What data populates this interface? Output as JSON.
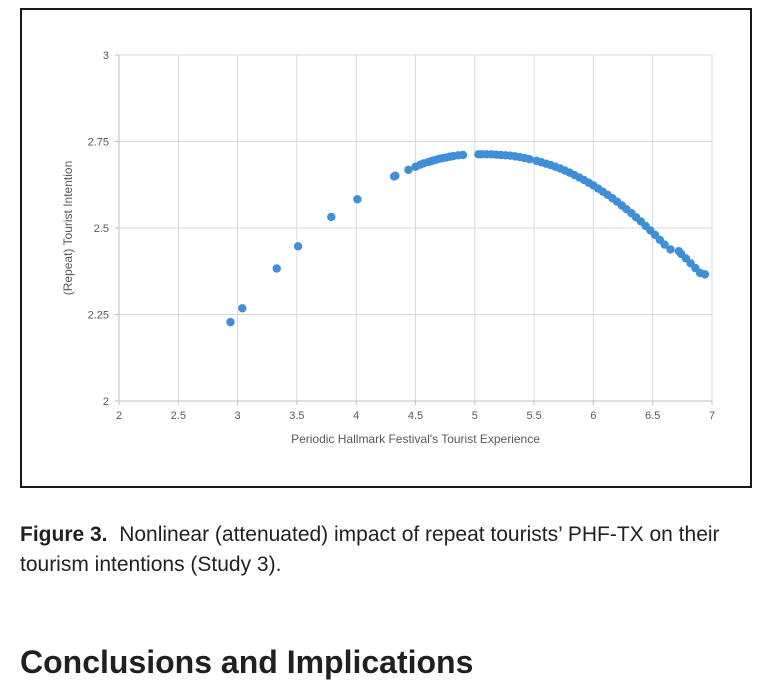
{
  "chart_data": {
    "type": "scatter",
    "xlabel": "Periodic Hallmark Festival's Tourist Experience",
    "ylabel": "(Repeat) Tourist Intention",
    "xlim": [
      2,
      7
    ],
    "ylim": [
      2,
      3
    ],
    "xticks": [
      "2",
      "2.5",
      "3",
      "3.5",
      "4",
      "4.5",
      "5",
      "5.5",
      "6",
      "6.5",
      "7"
    ],
    "yticks": [
      "2",
      "2.25",
      "2.5",
      "2.75",
      "3"
    ],
    "grid": true,
    "marker_color": "#3f8fd6",
    "series": [
      {
        "points": [
          [
            2.94,
            2.228
          ],
          [
            3.04,
            2.268
          ],
          [
            3.33,
            2.383
          ],
          [
            3.51,
            2.447
          ],
          [
            3.79,
            2.532
          ],
          [
            4.01,
            2.583
          ],
          [
            4.32,
            2.649
          ],
          [
            4.33,
            2.651
          ],
          [
            4.44,
            2.668
          ],
          [
            4.5,
            2.677
          ],
          [
            4.54,
            2.683
          ],
          [
            4.57,
            2.687
          ],
          [
            4.61,
            2.691
          ],
          [
            4.64,
            2.694
          ],
          [
            4.67,
            2.697
          ],
          [
            4.7,
            2.7
          ],
          [
            4.73,
            2.702
          ],
          [
            4.76,
            2.704
          ],
          [
            4.79,
            2.706
          ],
          [
            4.82,
            2.708
          ],
          [
            4.86,
            2.71
          ],
          [
            4.9,
            2.711
          ],
          [
            5.03,
            2.713
          ],
          [
            5.06,
            2.713
          ],
          [
            5.1,
            2.713
          ],
          [
            5.14,
            2.713
          ],
          [
            5.18,
            2.712
          ],
          [
            5.22,
            2.711
          ],
          [
            5.26,
            2.71
          ],
          [
            5.3,
            2.709
          ],
          [
            5.34,
            2.707
          ],
          [
            5.38,
            2.705
          ],
          [
            5.42,
            2.702
          ],
          [
            5.46,
            2.699
          ],
          [
            5.52,
            2.694
          ],
          [
            5.56,
            2.69
          ],
          [
            5.6,
            2.686
          ],
          [
            5.64,
            2.682
          ],
          [
            5.68,
            2.677
          ],
          [
            5.72,
            2.672
          ],
          [
            5.76,
            2.666
          ],
          [
            5.8,
            2.66
          ],
          [
            5.84,
            2.653
          ],
          [
            5.88,
            2.646
          ],
          [
            5.92,
            2.639
          ],
          [
            5.96,
            2.631
          ],
          [
            6.0,
            2.623
          ],
          [
            6.04,
            2.614
          ],
          [
            6.08,
            2.605
          ],
          [
            6.12,
            2.596
          ],
          [
            6.16,
            2.586
          ],
          [
            6.2,
            2.576
          ],
          [
            6.24,
            2.565
          ],
          [
            6.28,
            2.554
          ],
          [
            6.32,
            2.543
          ],
          [
            6.36,
            2.531
          ],
          [
            6.4,
            2.519
          ],
          [
            6.44,
            2.506
          ],
          [
            6.48,
            2.493
          ],
          [
            6.52,
            2.48
          ],
          [
            6.56,
            2.466
          ],
          [
            6.6,
            2.452
          ],
          [
            6.65,
            2.438
          ],
          [
            6.72,
            2.433
          ],
          [
            6.74,
            2.425
          ],
          [
            6.78,
            2.412
          ],
          [
            6.82,
            2.398
          ],
          [
            6.86,
            2.384
          ],
          [
            6.9,
            2.37
          ],
          [
            6.94,
            2.366
          ]
        ]
      }
    ]
  },
  "caption": {
    "label": "Figure 3.",
    "text": "Nonlinear (attenuated) impact of repeat tourists’ PHF-TX on their tourism intentions (Study 3)."
  },
  "section_heading": "Conclusions and Implications"
}
